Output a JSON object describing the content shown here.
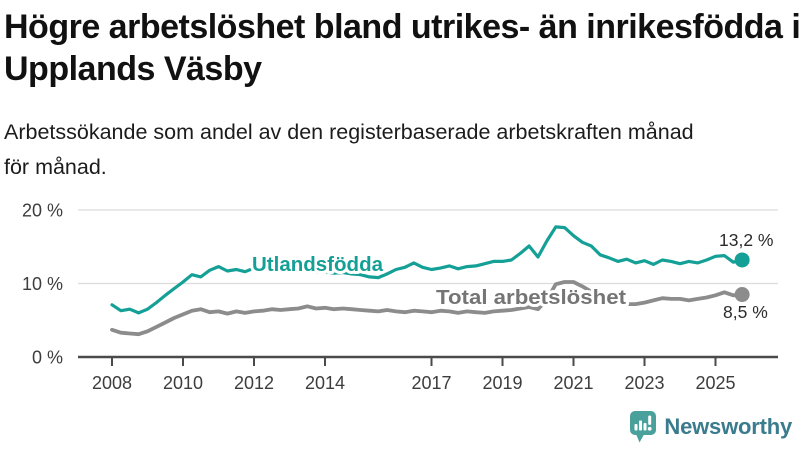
{
  "header": {
    "title": "Högre arbetslöshet bland utrikes- än inrikesfödda i Upplands Väsby",
    "subtitle": "Arbetssökande som andel av den registerbaserade arbetskraften månad för månad."
  },
  "chart_data": {
    "type": "line",
    "title": "Högre arbetslöshet bland utrikes- än inrikesfödda i Upplands Väsby",
    "subtitle": "Arbetssökande som andel av den registerbaserade arbetskraften månad för månad.",
    "unit": "%",
    "x_start": 2008,
    "x_step": 0.25,
    "x_end": 2025.75,
    "ylim": [
      0,
      20
    ],
    "grid": "horizontal",
    "legend": "inline-series-labels",
    "yticks": [
      {
        "value": 0,
        "label": "0 %"
      },
      {
        "value": 10,
        "label": "10 %"
      },
      {
        "value": 20,
        "label": "20 %"
      }
    ],
    "xticks": [
      {
        "value": 2008,
        "label": "2008"
      },
      {
        "value": 2010,
        "label": "2010"
      },
      {
        "value": 2012,
        "label": "2012"
      },
      {
        "value": 2014,
        "label": "2014"
      },
      {
        "value": 2017,
        "label": "2017"
      },
      {
        "value": 2019,
        "label": "2019"
      },
      {
        "value": 2021,
        "label": "2021"
      },
      {
        "value": 2023,
        "label": "2023"
      },
      {
        "value": 2025,
        "label": "2025"
      }
    ],
    "series": [
      {
        "name": "Utlandsfödda",
        "color": "#14a096",
        "end_value": 13.2,
        "end_value_label": "13,2 %",
        "values": [
          7.1,
          6.3,
          6.5,
          6.0,
          6.5,
          7.4,
          8.4,
          9.3,
          10.2,
          11.2,
          10.9,
          11.8,
          12.3,
          11.7,
          11.9,
          11.6,
          12.1,
          12.3,
          12.0,
          11.9,
          11.9,
          11.7,
          11.9,
          11.6,
          11.6,
          11.4,
          11.5,
          11.3,
          11.2,
          10.9,
          10.8,
          11.3,
          11.9,
          12.2,
          12.8,
          12.2,
          11.9,
          12.1,
          12.4,
          12.0,
          12.3,
          12.4,
          12.7,
          13.0,
          13.0,
          13.2,
          14.1,
          15.1,
          13.6,
          15.8,
          17.7,
          17.6,
          16.5,
          15.6,
          15.1,
          13.9,
          13.5,
          13.0,
          13.3,
          12.8,
          13.1,
          12.6,
          13.2,
          13.0,
          12.7,
          13.0,
          12.8,
          13.2,
          13.7,
          13.8,
          12.9,
          13.2
        ]
      },
      {
        "name": "Total arbetslöshet",
        "color": "#8c8c8c",
        "label_color": "#757575",
        "end_value": 8.5,
        "end_value_label": "8,5 %",
        "values": [
          3.7,
          3.3,
          3.2,
          3.1,
          3.5,
          4.1,
          4.7,
          5.3,
          5.8,
          6.3,
          6.5,
          6.1,
          6.2,
          5.9,
          6.2,
          6.0,
          6.2,
          6.3,
          6.5,
          6.4,
          6.5,
          6.6,
          6.9,
          6.6,
          6.7,
          6.5,
          6.6,
          6.5,
          6.4,
          6.3,
          6.2,
          6.4,
          6.2,
          6.1,
          6.3,
          6.2,
          6.1,
          6.3,
          6.2,
          6.0,
          6.2,
          6.1,
          6.0,
          6.2,
          6.3,
          6.4,
          6.6,
          6.8,
          6.5,
          7.8,
          9.9,
          10.2,
          10.2,
          9.6,
          8.9,
          8.2,
          7.8,
          7.4,
          7.2,
          7.2,
          7.4,
          7.7,
          8.0,
          7.9,
          7.9,
          7.7,
          7.9,
          8.1,
          8.4,
          8.8,
          8.4,
          8.5
        ]
      }
    ]
  },
  "footer": {
    "brand": "Newsworthy",
    "logo_icon": "newsworthy-speech-bubble-bar-chart-icon",
    "logo_color": "#4aa09b",
    "brand_color": "#3a7b8d"
  }
}
